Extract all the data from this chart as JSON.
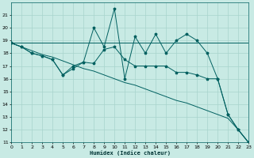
{
  "xlabel": "Humidex (Indice chaleur)",
  "bg_color": "#c8eae4",
  "grid_color": "#a8d4cc",
  "line_color": "#006060",
  "ylim": [
    11,
    22
  ],
  "xlim": [
    0,
    23
  ],
  "yticks": [
    11,
    12,
    13,
    14,
    15,
    16,
    17,
    18,
    19,
    20,
    21
  ],
  "xticks": [
    0,
    1,
    2,
    3,
    4,
    5,
    6,
    7,
    8,
    9,
    10,
    11,
    12,
    13,
    14,
    15,
    16,
    17,
    18,
    19,
    20,
    21,
    22,
    23
  ],
  "series1": {
    "x": [
      0,
      1,
      2,
      3,
      4,
      5,
      6,
      7,
      8,
      9,
      10,
      11,
      12,
      13,
      14,
      15,
      16,
      17,
      18,
      19,
      20,
      21,
      22,
      23
    ],
    "y": [
      18.8,
      18.5,
      18.2,
      17.9,
      17.7,
      17.4,
      17.1,
      16.8,
      16.6,
      16.3,
      16.0,
      15.7,
      15.5,
      15.2,
      14.9,
      14.6,
      14.3,
      14.1,
      13.8,
      13.5,
      13.2,
      12.9,
      12.0,
      11.0
    ]
  },
  "series2": {
    "x": [
      0,
      1,
      2,
      3,
      4,
      5,
      6,
      7,
      8,
      9,
      10,
      11,
      12,
      13,
      14,
      15,
      16,
      17,
      18,
      19,
      20,
      21,
      22,
      23
    ],
    "y": [
      18.8,
      18.8,
      18.8,
      18.8,
      18.8,
      18.8,
      18.8,
      18.8,
      18.8,
      18.8,
      18.8,
      18.8,
      18.8,
      18.8,
      18.8,
      18.8,
      18.8,
      18.8,
      18.8,
      18.8,
      18.8,
      18.8,
      18.8,
      18.8
    ]
  },
  "series3": {
    "x": [
      0,
      1,
      2,
      3,
      4,
      5,
      6,
      7,
      8,
      9,
      10,
      11,
      12,
      13,
      14,
      15,
      16,
      17,
      18,
      19,
      20,
      21,
      22,
      23
    ],
    "y": [
      18.8,
      18.5,
      18.0,
      17.8,
      17.5,
      16.3,
      16.8,
      17.3,
      20.0,
      18.5,
      21.5,
      16.0,
      19.3,
      18.0,
      19.5,
      18.0,
      19.0,
      19.5,
      19.0,
      18.0,
      16.0,
      13.2,
      12.0,
      11.0
    ]
  },
  "series4": {
    "x": [
      0,
      1,
      2,
      3,
      4,
      5,
      6,
      7,
      8,
      9,
      10,
      11,
      12,
      13,
      14,
      15,
      16,
      17,
      18,
      19,
      20,
      21,
      22,
      23
    ],
    "y": [
      18.8,
      18.5,
      18.0,
      17.8,
      17.5,
      16.3,
      17.0,
      17.3,
      17.2,
      18.3,
      18.5,
      17.5,
      17.0,
      17.0,
      17.0,
      17.0,
      16.5,
      16.5,
      16.3,
      16.0,
      16.0,
      13.2,
      12.0,
      11.0
    ]
  }
}
